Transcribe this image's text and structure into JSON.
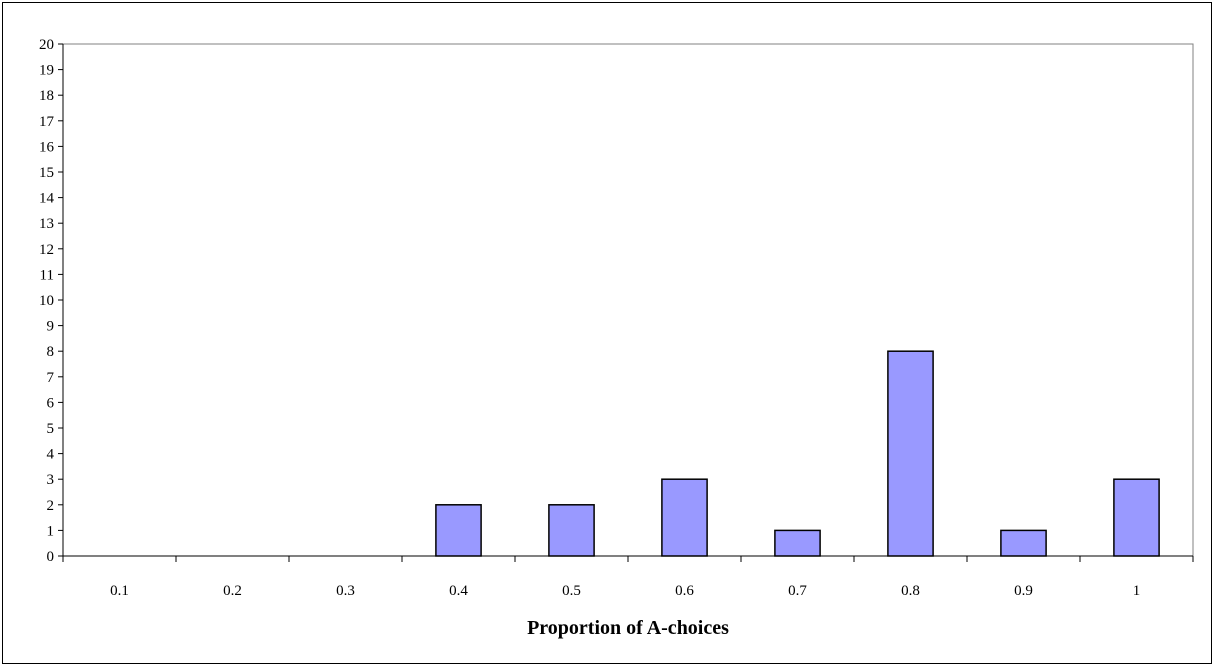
{
  "chart_data": {
    "type": "bar",
    "title": "",
    "xlabel": "Proportion of A-choices",
    "ylabel": "",
    "categories": [
      "0.1",
      "0.2",
      "0.3",
      "0.4",
      "0.5",
      "0.6",
      "0.7",
      "0.8",
      "0.9",
      "1"
    ],
    "values": [
      0,
      0,
      0,
      2,
      2,
      3,
      1,
      8,
      1,
      3
    ],
    "ylim": [
      0,
      20
    ],
    "yticks": [
      0,
      1,
      2,
      3,
      4,
      5,
      6,
      7,
      8,
      9,
      10,
      11,
      12,
      13,
      14,
      15,
      16,
      17,
      18,
      19,
      20
    ],
    "grid": false,
    "legend": "none",
    "bar_color": "#9999ff",
    "bar_edge_color": "#000000"
  }
}
